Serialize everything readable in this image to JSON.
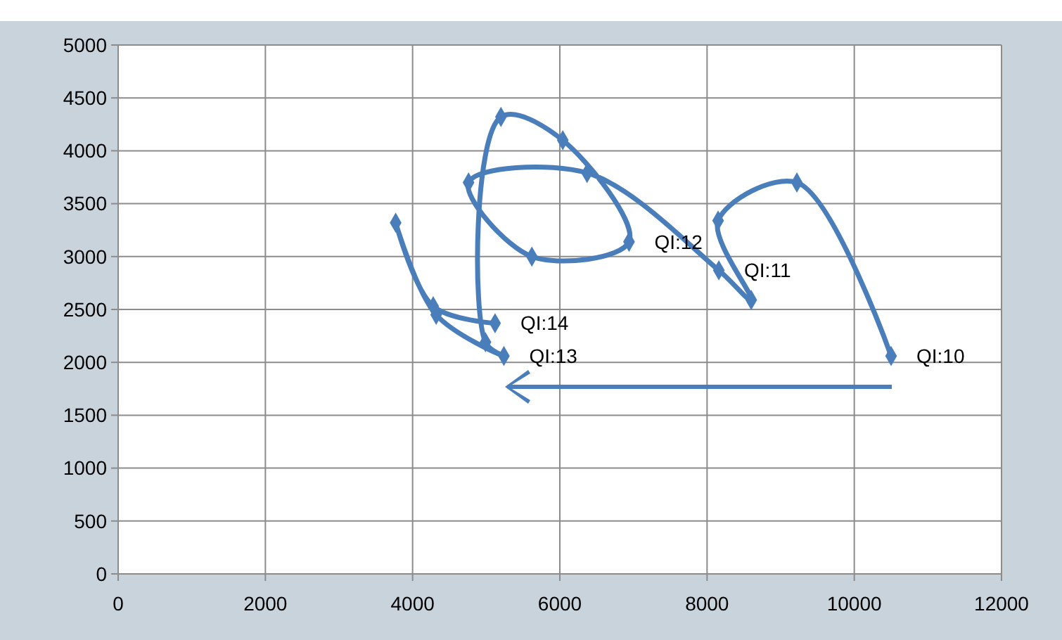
{
  "chart_data": {
    "type": "line",
    "x": [
      10500,
      9220,
      8150,
      8600,
      8160,
      6370,
      4760,
      5620,
      6940,
      6040,
      5200,
      4990,
      5240,
      4320,
      3770,
      4280,
      5120
    ],
    "series": [
      {
        "color": "#4a7ebb",
        "values": [
          2060,
          3700,
          3340,
          2590,
          2870,
          3790,
          3700,
          3000,
          3140,
          4100,
          4320,
          2190,
          2060,
          2450,
          3320,
          2530,
          2370
        ]
      }
    ],
    "annotations": [
      {
        "text": "QI:10",
        "x": 10500,
        "y": 2060
      },
      {
        "text": "QI:11",
        "x": 8160,
        "y": 2870
      },
      {
        "text": "QI:12",
        "x": 6940,
        "y": 3140
      },
      {
        "text": "QI:13",
        "x": 5240,
        "y": 2060
      },
      {
        "text": "QI:14",
        "x": 5120,
        "y": 2370
      }
    ],
    "xlim": [
      0,
      12000
    ],
    "xticks": [
      0,
      2000,
      4000,
      6000,
      8000,
      10000,
      12000
    ],
    "ylim": [
      0,
      5000
    ],
    "yticks": [
      0,
      500,
      1000,
      1500,
      2000,
      2500,
      3000,
      3500,
      4000,
      4500,
      5000
    ],
    "grid": true,
    "marker": "diamond",
    "line_style": "solid"
  }
}
